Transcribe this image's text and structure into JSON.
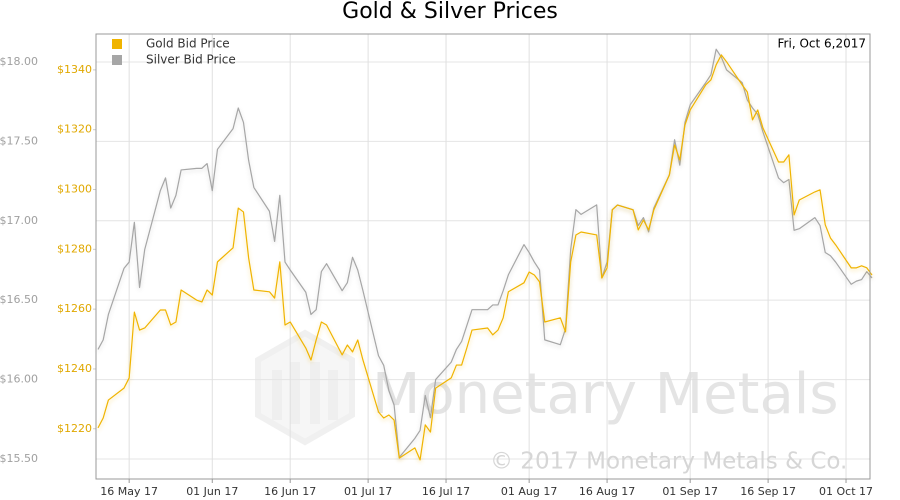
{
  "chart_data": {
    "type": "line",
    "title": "Gold & Silver Prices",
    "annotations": [
      "Fri, Oct 6,2017",
      "Monetary Metals",
      "© 2017 Monetary Metals & Co."
    ],
    "legend": "top-left",
    "grid": true,
    "x": [
      "2017-05-10",
      "2017-05-11",
      "2017-05-12",
      "2017-05-15",
      "2017-05-16",
      "2017-05-17",
      "2017-05-18",
      "2017-05-19",
      "2017-05-22",
      "2017-05-23",
      "2017-05-24",
      "2017-05-25",
      "2017-05-26",
      "2017-05-29",
      "2017-05-30",
      "2017-05-31",
      "2017-06-01",
      "2017-06-02",
      "2017-06-05",
      "2017-06-06",
      "2017-06-07",
      "2017-06-08",
      "2017-06-09",
      "2017-06-12",
      "2017-06-13",
      "2017-06-14",
      "2017-06-15",
      "2017-06-16",
      "2017-06-19",
      "2017-06-20",
      "2017-06-21",
      "2017-06-22",
      "2017-06-23",
      "2017-06-26",
      "2017-06-27",
      "2017-06-28",
      "2017-06-29",
      "2017-06-30",
      "2017-07-03",
      "2017-07-04",
      "2017-07-05",
      "2017-07-06",
      "2017-07-07",
      "2017-07-10",
      "2017-07-11",
      "2017-07-12",
      "2017-07-13",
      "2017-07-14",
      "2017-07-17",
      "2017-07-18",
      "2017-07-19",
      "2017-07-20",
      "2017-07-21",
      "2017-07-24",
      "2017-07-25",
      "2017-07-26",
      "2017-07-27",
      "2017-07-28",
      "2017-07-31",
      "2017-08-01",
      "2017-08-02",
      "2017-08-03",
      "2017-08-04",
      "2017-08-07",
      "2017-08-08",
      "2017-08-09",
      "2017-08-10",
      "2017-08-11",
      "2017-08-14",
      "2017-08-15",
      "2017-08-16",
      "2017-08-17",
      "2017-08-18",
      "2017-08-21",
      "2017-08-22",
      "2017-08-23",
      "2017-08-24",
      "2017-08-25",
      "2017-08-28",
      "2017-08-29",
      "2017-08-30",
      "2017-08-31",
      "2017-09-01",
      "2017-09-04",
      "2017-09-05",
      "2017-09-06",
      "2017-09-07",
      "2017-09-08",
      "2017-09-11",
      "2017-09-12",
      "2017-09-13",
      "2017-09-14",
      "2017-09-15",
      "2017-09-18",
      "2017-09-19",
      "2017-09-20",
      "2017-09-21",
      "2017-09-22",
      "2017-09-25",
      "2017-09-26",
      "2017-09-27",
      "2017-09-28",
      "2017-09-29",
      "2017-10-02",
      "2017-10-03",
      "2017-10-04",
      "2017-10-05",
      "2017-10-06"
    ],
    "xlim": [
      "2017-05-10",
      "2017-10-06"
    ],
    "xticks": [
      {
        "value": "2017-05-16",
        "label": "16 May 17"
      },
      {
        "value": "2017-06-01",
        "label": "01 Jun 17"
      },
      {
        "value": "2017-06-16",
        "label": "16 Jun 17"
      },
      {
        "value": "2017-07-01",
        "label": "01 Jul 17"
      },
      {
        "value": "2017-07-16",
        "label": "16 Jul 17"
      },
      {
        "value": "2017-08-01",
        "label": "01 Aug 17"
      },
      {
        "value": "2017-08-16",
        "label": "16 Aug 17"
      },
      {
        "value": "2017-09-01",
        "label": "01 Sep 17"
      },
      {
        "value": "2017-09-16",
        "label": "16 Sep 17"
      },
      {
        "value": "2017-10-01",
        "label": "01 Oct 17"
      }
    ],
    "ylim": [
      1203.2,
      1352
    ],
    "yticks": [
      {
        "value": 1220,
        "label": "$1220"
      },
      {
        "value": 1240,
        "label": "$1240"
      },
      {
        "value": 1260,
        "label": "$1260"
      },
      {
        "value": 1280,
        "label": "$1280"
      },
      {
        "value": 1300,
        "label": "$1300"
      },
      {
        "value": 1320,
        "label": "$1320"
      },
      {
        "value": 1340,
        "label": "$1340"
      }
    ],
    "y2lim": [
      15.374,
      18.176
    ],
    "y2ticks": [
      {
        "value": 15.5,
        "label": "$15.50"
      },
      {
        "value": 16,
        "label": "$16.00"
      },
      {
        "value": 16.5,
        "label": "$16.50"
      },
      {
        "value": 17,
        "label": "$17.00"
      },
      {
        "value": 17.5,
        "label": "$17.50"
      },
      {
        "value": 18,
        "label": "$18.00"
      }
    ],
    "series": [
      {
        "name": "Gold Bid Price",
        "color": "#f0b400",
        "axis": "y",
        "values": [
          1220.3,
          1223.6,
          1229.6,
          1233.6,
          1237,
          1259,
          1253,
          1253.7,
          1259.7,
          1259.7,
          1254.7,
          1255.7,
          1266.4,
          1263,
          1262.4,
          1266.4,
          1264.7,
          1275.8,
          1280.5,
          1293.8,
          1292.5,
          1277.1,
          1266.4,
          1265.8,
          1263.7,
          1275.8,
          1254.7,
          1255.7,
          1247,
          1243,
          1249.7,
          1255.7,
          1254.7,
          1244.7,
          1248,
          1245.7,
          1249.7,
          1243,
          1225.6,
          1223.6,
          1224.6,
          1222.9,
          1210.2,
          1213.6,
          1209.6,
          1221.3,
          1218.9,
          1233.6,
          1237,
          1241.3,
          1241.3,
          1247,
          1253,
          1253.7,
          1251.4,
          1253,
          1257.1,
          1265.8,
          1268.8,
          1272.4,
          1271.4,
          1269.1,
          1255.7,
          1257.1,
          1252.4,
          1275.8,
          1284.8,
          1285.8,
          1284.8,
          1270.4,
          1273.8,
          1293.2,
          1294.8,
          1293.2,
          1286.5,
          1289.8,
          1286.5,
          1293.2,
          1304.9,
          1314.9,
          1309.9,
          1321.6,
          1326.6,
          1335,
          1336.7,
          1341.7,
          1345,
          1342.7,
          1335,
          1332.6,
          1323.3,
          1326.6,
          1320.6,
          1309.2,
          1309.2,
          1311.6,
          1291.5,
          1296.5,
          1299.2,
          1299.9,
          1288.2,
          1283.8,
          1281.5,
          1273.8,
          1273.8,
          1274.5,
          1273.8,
          1271.4
        ]
      },
      {
        "name": "Silver Bid Price",
        "color": "#a6a6a6",
        "axis": "y2",
        "values": [
          16.19,
          16.25,
          16.41,
          16.7,
          16.74,
          16.99,
          16.58,
          16.82,
          17.19,
          17.27,
          17.08,
          17.16,
          17.32,
          17.33,
          17.33,
          17.36,
          17.19,
          17.45,
          17.58,
          17.71,
          17.62,
          17.38,
          17.21,
          17.06,
          16.87,
          17.16,
          16.74,
          16.69,
          16.55,
          16.41,
          16.44,
          16.68,
          16.73,
          16.56,
          16.61,
          16.77,
          16.69,
          16.56,
          16.15,
          16.09,
          15.93,
          15.84,
          15.51,
          15.63,
          15.68,
          15.9,
          15.76,
          16.0,
          16.11,
          16.19,
          16.24,
          16.34,
          16.44,
          16.44,
          16.47,
          16.47,
          16.56,
          16.66,
          16.85,
          16.8,
          16.74,
          16.69,
          16.25,
          16.22,
          16.32,
          16.82,
          17.07,
          17.04,
          17.1,
          16.64,
          16.74,
          17.07,
          17.1,
          17.07,
          16.97,
          17.02,
          16.93,
          17.08,
          17.29,
          17.51,
          17.35,
          17.62,
          17.73,
          17.87,
          17.92,
          18.08,
          18.03,
          17.95,
          17.87,
          17.76,
          17.71,
          17.67,
          17.56,
          17.27,
          17.24,
          17.26,
          16.94,
          16.95,
          17.02,
          16.97,
          16.8,
          16.78,
          16.74,
          16.6,
          16.62,
          16.63,
          16.68,
          16.64
        ]
      }
    ]
  }
}
